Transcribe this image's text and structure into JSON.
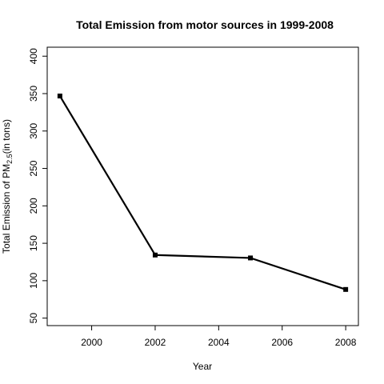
{
  "chart_data": {
    "type": "line",
    "title": "Total Emission from motor sources in 1999-2008",
    "xlabel": "Year",
    "ylabel_main": "Total Emission of PM",
    "ylabel_sub": "2.5",
    "ylabel_tail": "(in tons)",
    "x": [
      1999,
      2002,
      2005,
      2008
    ],
    "series": [
      {
        "values": [
          346.8,
          134.3,
          130.4,
          88.3
        ]
      }
    ],
    "xlim": [
      1998.6,
      2008.4
    ],
    "ylim": [
      40,
      412
    ],
    "xticks": [
      2000,
      2002,
      2004,
      2006,
      2008
    ],
    "yticks": [
      50,
      100,
      150,
      200,
      250,
      300,
      350,
      400
    ],
    "grid": false,
    "legend": "none",
    "line_color": "#000000"
  }
}
